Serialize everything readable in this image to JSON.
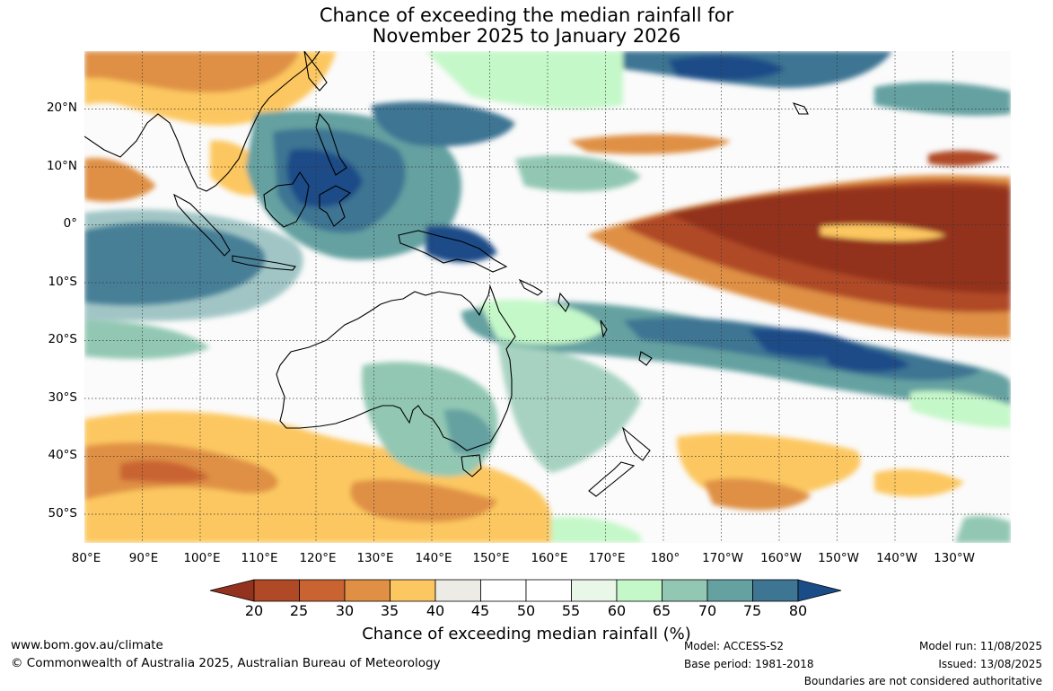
{
  "title_line1": "Chance of exceeding the median rainfall for",
  "title_line2": "November 2025 to January 2026",
  "lat_labels": [
    "20°N",
    "10°N",
    "0°",
    "10°S",
    "20°S",
    "30°S",
    "40°S",
    "50°S"
  ],
  "lon_labels": [
    "80°E",
    "90°E",
    "100°E",
    "110°E",
    "120°E",
    "130°E",
    "140°E",
    "150°E",
    "160°E",
    "170°E",
    "180°",
    "170°W",
    "160°W",
    "150°W",
    "140°W",
    "130°W"
  ],
  "colorbar": {
    "ticks": [
      "20",
      "25",
      "30",
      "35",
      "40",
      "45",
      "50",
      "55",
      "60",
      "65",
      "70",
      "75",
      "80"
    ],
    "colors": [
      "#93321e",
      "#b04a26",
      "#c96432",
      "#df9045",
      "#fcc760",
      "#edebe6",
      "#ffffff",
      "#ffffff",
      "#e9f7e9",
      "#c5f8c9",
      "#92c8b3",
      "#65a1a1",
      "#3d7593",
      "#1a4c88"
    ],
    "title": "Chance of exceeding median rainfall (%)"
  },
  "footer": {
    "website": "www.bom.gov.au/climate",
    "copyright": "© Commonwealth of Australia 2025, Australian Bureau of Meteorology",
    "model": "Model: ACCESS-S2",
    "base_period": "Base period: 1981-2018",
    "model_run": "Model run: 11/08/2025",
    "issued": "Issued: 13/08/2025",
    "disclaimer": "Boundaries are not considered authoritative"
  },
  "map_extent": {
    "lon_min": 80,
    "lon_max": 240,
    "lat_min": -55,
    "lat_max": 30
  }
}
